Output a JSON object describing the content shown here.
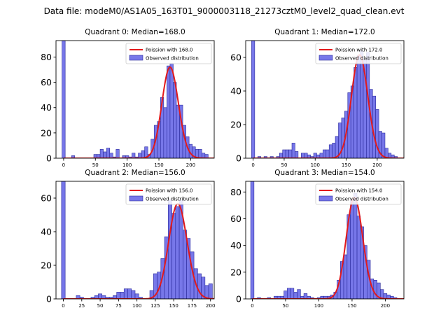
{
  "figure_title": "Data file: modeM0/AS1A05_163T01_9000003118_21273cztM0_level2_quad_clean.evt",
  "colors": {
    "bar_fill": "#7777e9",
    "bar_edge": "#2a2a9c",
    "curve": "#e31a1c"
  },
  "chart_data": [
    {
      "type": "bar",
      "title": "Quadrant 0: Median=168.0",
      "median": 168.0,
      "legend": [
        "Poission with 168.0",
        "Observed distribution"
      ],
      "legend_location": "upper right",
      "bin_width": 5,
      "xlim": [
        -12,
        237
      ],
      "ylim": [
        0,
        93
      ],
      "xticks": [
        0,
        50,
        100,
        150,
        200
      ],
      "yticks": [
        0,
        20,
        40,
        60,
        80
      ],
      "bars": [
        [
          0,
          93
        ],
        [
          15,
          2
        ],
        [
          50,
          3
        ],
        [
          55,
          3
        ],
        [
          60,
          7
        ],
        [
          65,
          5
        ],
        [
          70,
          8
        ],
        [
          75,
          4
        ],
        [
          80,
          1
        ],
        [
          85,
          7
        ],
        [
          95,
          2
        ],
        [
          100,
          2
        ],
        [
          105,
          1
        ],
        [
          110,
          4
        ],
        [
          115,
          1
        ],
        [
          120,
          4
        ],
        [
          125,
          6
        ],
        [
          130,
          9
        ],
        [
          135,
          3
        ],
        [
          140,
          15
        ],
        [
          145,
          26
        ],
        [
          150,
          29
        ],
        [
          155,
          48
        ],
        [
          160,
          40
        ],
        [
          165,
          73
        ],
        [
          170,
          75
        ],
        [
          175,
          60
        ],
        [
          180,
          42
        ],
        [
          185,
          42
        ],
        [
          190,
          26
        ],
        [
          195,
          17
        ],
        [
          200,
          11
        ],
        [
          205,
          9
        ],
        [
          210,
          7
        ],
        [
          215,
          7
        ],
        [
          220,
          4
        ],
        [
          225,
          3
        ]
      ]
    },
    {
      "type": "bar",
      "title": "Quadrant 1: Median=172.0",
      "median": 172.0,
      "legend": [
        "Poission with 172.0",
        "Observed distribution"
      ],
      "legend_location": "upper right",
      "bin_width": 5,
      "xlim": [
        -12,
        243
      ],
      "ylim": [
        0,
        70
      ],
      "xticks": [
        0,
        50,
        100,
        150,
        200
      ],
      "yticks": [
        0,
        20,
        40,
        60
      ],
      "bars": [
        [
          0,
          70
        ],
        [
          10,
          1
        ],
        [
          20,
          1
        ],
        [
          30,
          1
        ],
        [
          40,
          1
        ],
        [
          45,
          3
        ],
        [
          50,
          5
        ],
        [
          55,
          5
        ],
        [
          60,
          5
        ],
        [
          65,
          9
        ],
        [
          70,
          4
        ],
        [
          80,
          3
        ],
        [
          85,
          3
        ],
        [
          90,
          2
        ],
        [
          95,
          1
        ],
        [
          100,
          3
        ],
        [
          105,
          2
        ],
        [
          110,
          3
        ],
        [
          115,
          5
        ],
        [
          120,
          5
        ],
        [
          125,
          8
        ],
        [
          130,
          9
        ],
        [
          135,
          13
        ],
        [
          140,
          21
        ],
        [
          145,
          24
        ],
        [
          150,
          28
        ],
        [
          155,
          39
        ],
        [
          160,
          43
        ],
        [
          165,
          54
        ],
        [
          170,
          61
        ],
        [
          175,
          64
        ],
        [
          180,
          59
        ],
        [
          185,
          63
        ],
        [
          190,
          41
        ],
        [
          195,
          37
        ],
        [
          200,
          29
        ],
        [
          205,
          16
        ],
        [
          210,
          15
        ],
        [
          215,
          6
        ],
        [
          220,
          3
        ],
        [
          225,
          2
        ],
        [
          230,
          1
        ]
      ]
    },
    {
      "type": "bar",
      "title": "Quadrant 2: Median=156.0",
      "median": 156.0,
      "legend": [
        "Poission with 156.0",
        "Observed distribution"
      ],
      "legend_location": "upper right",
      "bin_width": 5,
      "xlim": [
        -10,
        205
      ],
      "ylim": [
        0,
        70
      ],
      "xticks": [
        0,
        25,
        50,
        75,
        100,
        125,
        150,
        175,
        200
      ],
      "yticks": [
        0,
        20,
        40,
        60
      ],
      "bars": [
        [
          0,
          70
        ],
        [
          20,
          2
        ],
        [
          25,
          1
        ],
        [
          40,
          1
        ],
        [
          45,
          2
        ],
        [
          50,
          3
        ],
        [
          55,
          2
        ],
        [
          60,
          1
        ],
        [
          65,
          1
        ],
        [
          70,
          2
        ],
        [
          75,
          4
        ],
        [
          80,
          4
        ],
        [
          85,
          6
        ],
        [
          90,
          6
        ],
        [
          95,
          5
        ],
        [
          100,
          3
        ],
        [
          105,
          1
        ],
        [
          120,
          5
        ],
        [
          125,
          15
        ],
        [
          130,
          16
        ],
        [
          135,
          24
        ],
        [
          140,
          37
        ],
        [
          145,
          59
        ],
        [
          150,
          51
        ],
        [
          155,
          55
        ],
        [
          160,
          59
        ],
        [
          165,
          41
        ],
        [
          170,
          36
        ],
        [
          175,
          28
        ],
        [
          180,
          18
        ],
        [
          185,
          15
        ],
        [
          190,
          13
        ],
        [
          195,
          8
        ],
        [
          200,
          9
        ]
      ]
    },
    {
      "type": "bar",
      "title": "Quadrant 3: Median=154.0",
      "median": 154.0,
      "legend": [
        "Poission with 154.0",
        "Observed distribution"
      ],
      "legend_location": "upper right",
      "bin_width": 5,
      "xlim": [
        -10,
        228
      ],
      "ylim": [
        0,
        88
      ],
      "xticks": [
        0,
        50,
        100,
        150,
        200
      ],
      "yticks": [
        0,
        20,
        40,
        60,
        80
      ],
      "bars": [
        [
          0,
          88
        ],
        [
          10,
          1
        ],
        [
          25,
          1
        ],
        [
          35,
          2
        ],
        [
          40,
          2
        ],
        [
          45,
          2
        ],
        [
          50,
          6
        ],
        [
          55,
          8
        ],
        [
          60,
          8
        ],
        [
          65,
          5
        ],
        [
          70,
          7
        ],
        [
          75,
          2
        ],
        [
          80,
          4
        ],
        [
          85,
          2
        ],
        [
          90,
          1
        ],
        [
          100,
          1
        ],
        [
          105,
          2
        ],
        [
          110,
          2
        ],
        [
          115,
          2
        ],
        [
          120,
          3
        ],
        [
          125,
          5
        ],
        [
          130,
          14
        ],
        [
          135,
          28
        ],
        [
          140,
          33
        ],
        [
          145,
          63
        ],
        [
          150,
          74
        ],
        [
          155,
          79
        ],
        [
          160,
          62
        ],
        [
          165,
          54
        ],
        [
          170,
          40
        ],
        [
          175,
          29
        ],
        [
          180,
          15
        ],
        [
          185,
          14
        ],
        [
          190,
          12
        ],
        [
          195,
          7
        ],
        [
          200,
          4
        ],
        [
          205,
          3
        ],
        [
          210,
          2
        ],
        [
          215,
          1
        ]
      ]
    }
  ]
}
